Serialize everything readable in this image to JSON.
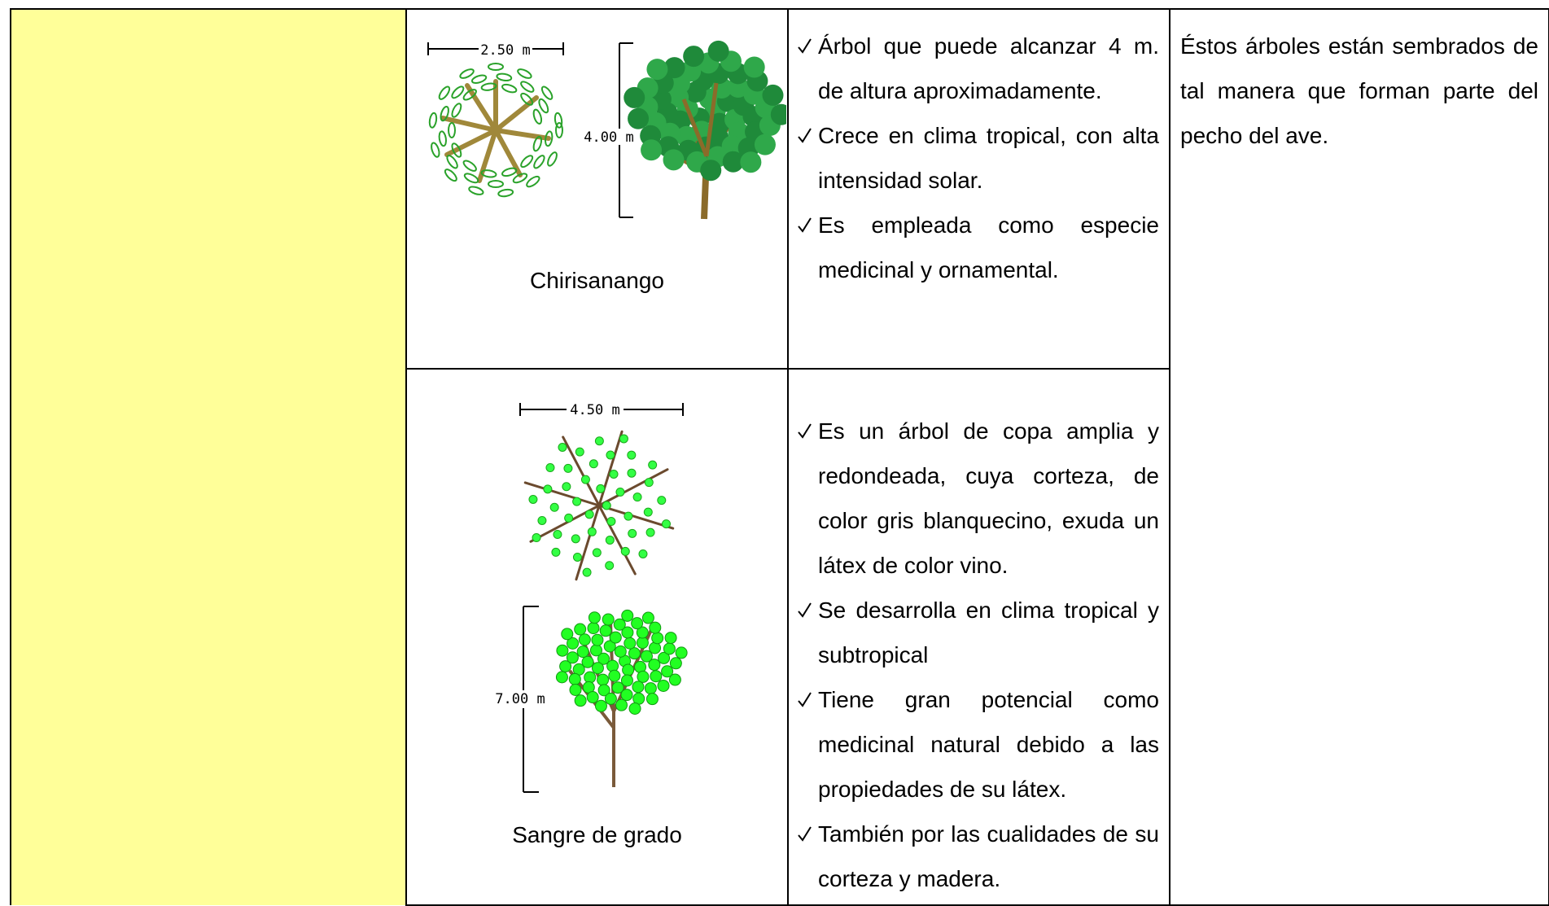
{
  "table": {
    "plants": [
      {
        "name": "Chirisanango",
        "width": "2.50 m",
        "height": "4.00 m",
        "traits": [
          "Árbol que puede alcanzar 4 m. de altura aproximadamente.",
          "Crece en clima tropical, con alta intensidad solar.",
          "Es empleada como especie medicinal y ornamental."
        ]
      },
      {
        "name": "Sangre de grado",
        "width": "4.50 m",
        "height": "7.00 m",
        "traits": [
          "Es un árbol de copa amplia y redondeada, cuya corteza, de color gris blanquecino, exuda un látex de color vino.",
          "Se desarrolla en clima tropical y subtropical",
          "Tiene gran potencial como medicinal natural debido a las propiedades de su látex.",
          "También por las cualidades de su corteza y madera."
        ]
      }
    ],
    "note": "Éstos árboles están sembrados de tal manera que forman parte del pecho del ave."
  }
}
